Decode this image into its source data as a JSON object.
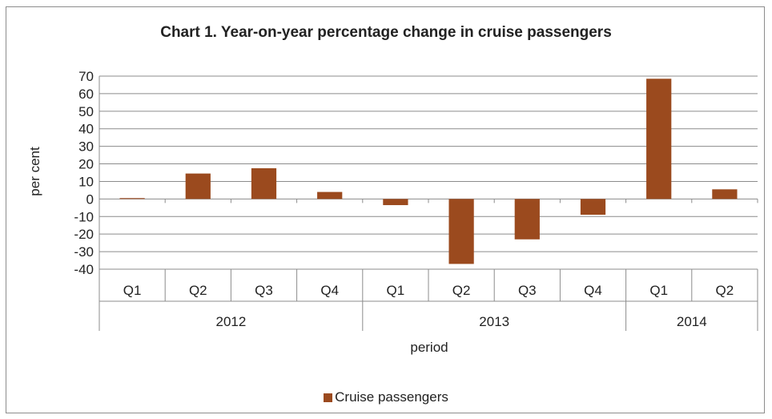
{
  "chart_data": {
    "type": "bar",
    "title": "Chart 1. Year-on-year percentage change in cruise passengers",
    "xlabel": "period",
    "ylabel": "per cent",
    "ylim": [
      -40,
      70
    ],
    "yticks": [
      70,
      60,
      50,
      40,
      30,
      20,
      10,
      0,
      -10,
      -20,
      -30,
      -40
    ],
    "grid": true,
    "legend_position": "bottom",
    "years": [
      {
        "label": "2012",
        "quarters": 4
      },
      {
        "label": "2013",
        "quarters": 4
      },
      {
        "label": "2014",
        "quarters": 2
      }
    ],
    "categories": [
      "Q1",
      "Q2",
      "Q3",
      "Q4",
      "Q1",
      "Q2",
      "Q3",
      "Q4",
      "Q1",
      "Q2"
    ],
    "series": [
      {
        "name": "Cruise passengers",
        "color": "#9b4a1e",
        "values": [
          0.5,
          14.5,
          17.5,
          4,
          -3.5,
          -37,
          -23,
          -9,
          68.5,
          5.5
        ]
      }
    ]
  }
}
